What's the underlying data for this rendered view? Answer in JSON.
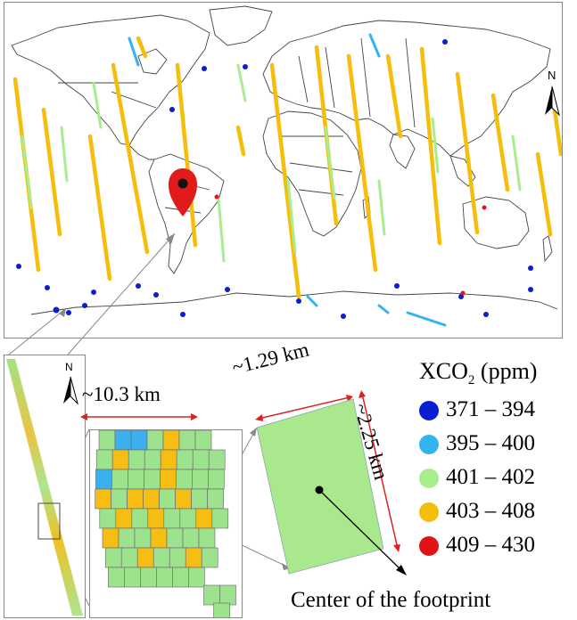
{
  "map": {
    "north_label": "N"
  },
  "strip": {
    "north_label": "N"
  },
  "dimensions": {
    "grid_width": "~10.3 km",
    "footprint_width": "~1.29 km",
    "footprint_height": "~2.25 km",
    "center_label": "Center of the footprint"
  },
  "legend": {
    "title_main": "XCO",
    "title_sub": "2",
    "title_unit": " (ppm)",
    "items": [
      {
        "label": "371 – 394",
        "color": "#0a1ed2"
      },
      {
        "label": "395 – 400",
        "color": "#33b4f0"
      },
      {
        "label": "401 – 402",
        "color": "#a8ee8e"
      },
      {
        "label": "403 – 408",
        "color": "#f4be0a"
      },
      {
        "label": "409 – 430",
        "color": "#e01414"
      }
    ]
  },
  "colors": {
    "marker": "#e21a1a",
    "arrow": "#e02020",
    "footprint_fill": "#a9e88c",
    "cell_green": "#9de28c",
    "cell_orange": "#f6be12",
    "cell_blue": "#3cb0ec"
  }
}
